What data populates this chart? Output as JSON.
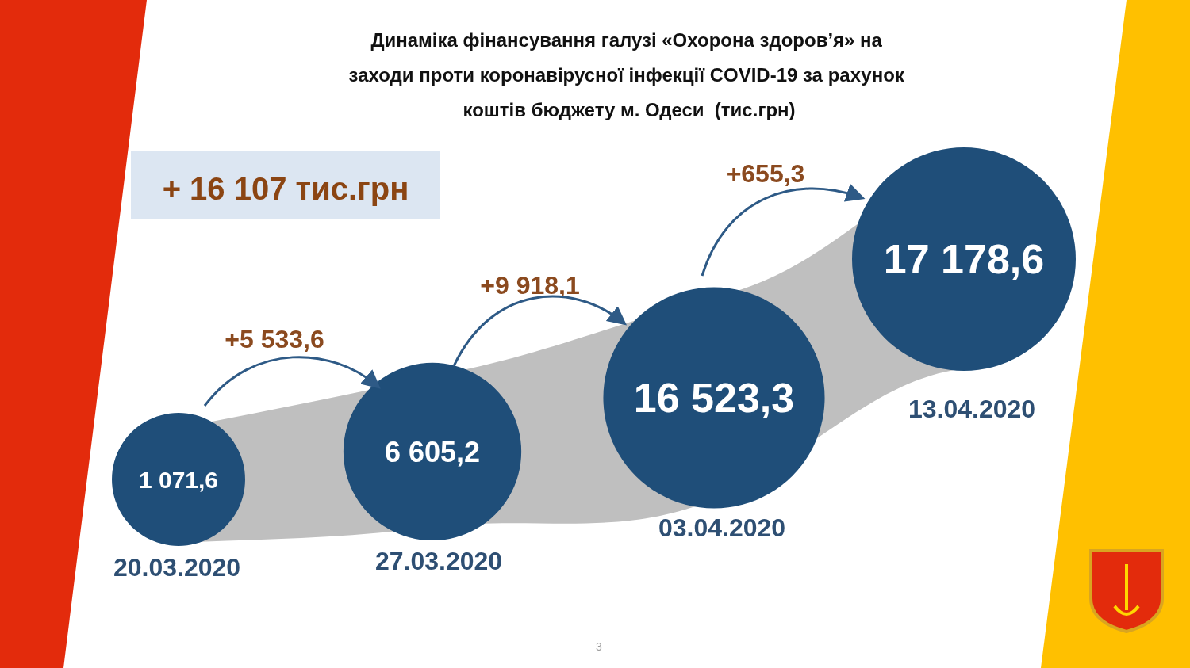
{
  "chart_data": {
    "type": "other",
    "title": "Динаміка фінансування галузі «Охорона здоров’я» на заходи проти коронавірусної інфекції COVID-19 за рахунок коштів бюджету м. Одеси  (тис.грн)",
    "categories": [
      "20.03.2020",
      "27.03.2020",
      "03.04.2020",
      "13.04.2020"
    ],
    "values": [
      1071.6,
      6605.2,
      16523.3,
      17178.6
    ],
    "color": "#1f4e79",
    "value_labels": [
      "1 071,6",
      "6 605,2",
      "16 523,3",
      "17 178,6"
    ],
    "annotations": [
      "+ 16 107 тис.грн",
      "+5 533,6",
      "+9 918,1",
      "+655,3",
      "3"
    ]
  }
}
